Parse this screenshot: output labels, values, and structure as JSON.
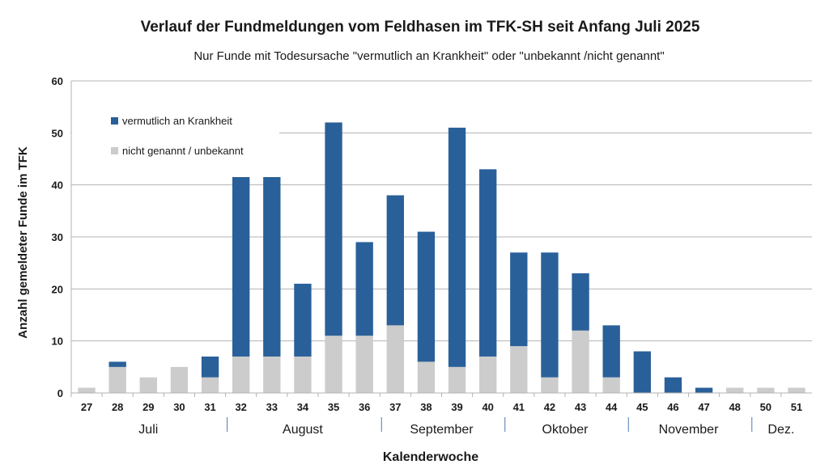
{
  "chart_data": {
    "type": "bar",
    "stacked": true,
    "title": "Verlauf der Fundmeldungen vom Feldhasen im TFK-SH seit Anfang Juli 2025",
    "subtitle": "Nur Funde mit Todesursache \"vermutlich an Krankheit\" oder \"unbekannt /nicht genannt\"",
    "xlabel": "Kalenderwoche",
    "ylabel": "Anzahl gemeldeter Funde im TFK",
    "ylim": [
      0,
      60
    ],
    "yticks": [
      0,
      10,
      20,
      30,
      40,
      50,
      60
    ],
    "grid": true,
    "legend_position": "top-left",
    "categories": [
      "27",
      "28",
      "29",
      "30",
      "31",
      "32",
      "33",
      "34",
      "35",
      "36",
      "37",
      "38",
      "39",
      "40",
      "41",
      "42",
      "43",
      "44",
      "45",
      "46",
      "47",
      "48",
      "50",
      "51"
    ],
    "months": [
      {
        "label": "Juli",
        "from": "27",
        "to": "31"
      },
      {
        "label": "August",
        "from": "32",
        "to": "36"
      },
      {
        "label": "September",
        "from": "37",
        "to": "40"
      },
      {
        "label": "Oktober",
        "from": "41",
        "to": "44"
      },
      {
        "label": "November",
        "from": "45",
        "to": "48"
      },
      {
        "label": "Dez.",
        "from": "50",
        "to": "51"
      }
    ],
    "series": [
      {
        "name": "nicht genannt / unbekannt",
        "color": "#cccccc",
        "values": [
          1,
          5,
          3,
          5,
          3,
          7,
          7,
          7,
          11,
          11,
          13,
          6,
          5,
          7,
          9,
          3,
          12,
          3,
          0,
          0,
          0,
          1,
          1,
          1
        ]
      },
      {
        "name": "vermutlich an Krankheit",
        "color": "#2a6099",
        "values": [
          0,
          1,
          0,
          0,
          4,
          34.5,
          34.5,
          14,
          41,
          18,
          25,
          25,
          46,
          36,
          18,
          24,
          11,
          10,
          8,
          3,
          1,
          0,
          0,
          0
        ]
      }
    ]
  }
}
